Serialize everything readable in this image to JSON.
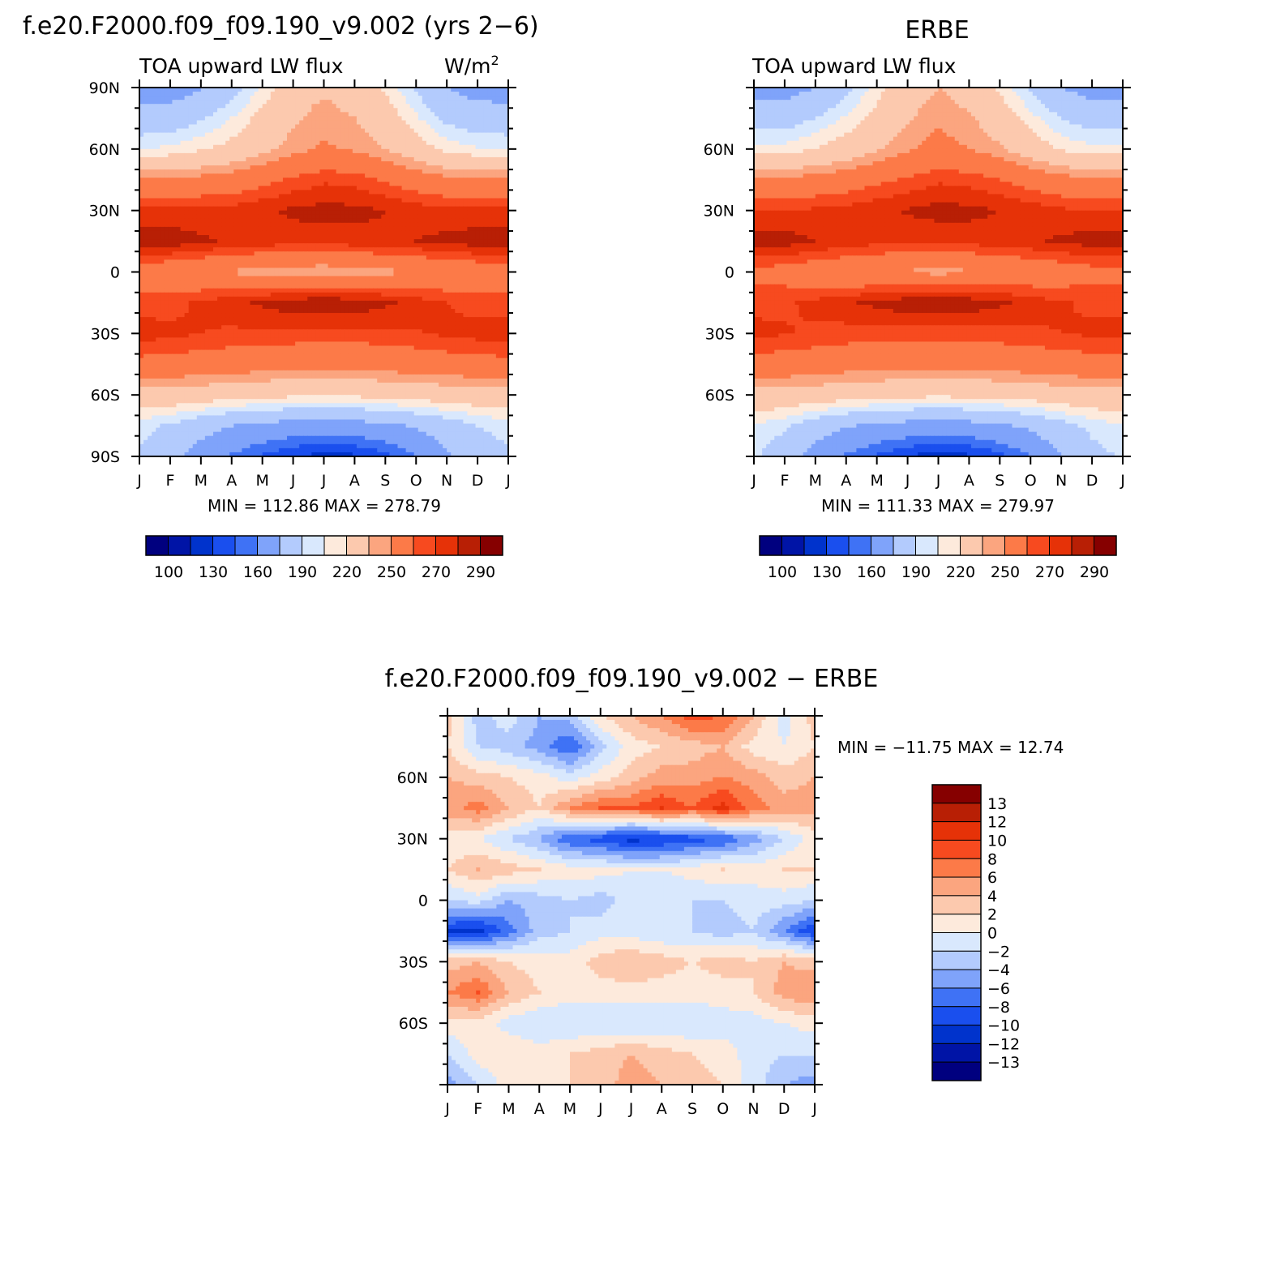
{
  "colors": {
    "abs_palette": [
      "#00007f",
      "#0014a6",
      "#0033cc",
      "#1a4fee",
      "#3f72f5",
      "#7fa3fa",
      "#b3cbfd",
      "#d9e8fd",
      "#fdeadc",
      "#fcc9ae",
      "#fba57f",
      "#fc7a48",
      "#f74a1f",
      "#e63208",
      "#b81f05",
      "#860000"
    ],
    "diff_palette": [
      "#00007f",
      "#0014a6",
      "#0033cc",
      "#1a4fee",
      "#3f72f5",
      "#7fa3fa",
      "#b3cbfd",
      "#d9e8fd",
      "#fdeadc",
      "#fcc9ae",
      "#fba57f",
      "#fc7a48",
      "#f74a1f",
      "#e63208",
      "#b81f05",
      "#860000"
    ]
  },
  "panels": {
    "model": {
      "title": "f.e20.F2000.f09_f09.190_v9.002 (yrs 2−6)",
      "left_string": "TOA upward LW flux",
      "units_base": "W/m",
      "units_sup": "2",
      "minmax": "MIN = 112.86 MAX = 278.79"
    },
    "obs": {
      "title": "ERBE",
      "left_string": "TOA upward LW flux",
      "minmax": "MIN = 111.33 MAX = 279.97"
    },
    "diff": {
      "title": "f.e20.F2000.f09_f09.190_v9.002 − ERBE",
      "minmax": "MIN = −11.75 MAX =  12.74"
    }
  },
  "axes": {
    "months": [
      "J",
      "F",
      "M",
      "A",
      "M",
      "J",
      "J",
      "A",
      "S",
      "O",
      "N",
      "D",
      "J"
    ],
    "lat_labels_model": [
      "90N",
      "60N",
      "30N",
      "0",
      "30S",
      "60S",
      "90S"
    ],
    "lat_labels_obs": [
      "60N",
      "30N",
      "0",
      "30S",
      "60S"
    ],
    "lat_labels_diff": [
      "60N",
      "30N",
      "0",
      "30S",
      "60S"
    ]
  },
  "legends": {
    "abs": [
      "100",
      "130",
      "160",
      "190",
      "220",
      "250",
      "270",
      "290"
    ],
    "diff": [
      "13",
      "12",
      "10",
      "8",
      "6",
      "4",
      "2",
      "0",
      "−2",
      "−4",
      "−6",
      "−8",
      "−10",
      "−12",
      "−13"
    ]
  },
  "chart_data": [
    {
      "type": "heatmap",
      "title": "f.e20.F2000.f09_f09.190_v9.002 (yrs 2−6)",
      "variable": "TOA upward LW flux",
      "units": "W/m2",
      "x": [
        "J",
        "F",
        "M",
        "A",
        "M",
        "J",
        "J",
        "A",
        "S",
        "O",
        "N",
        "D",
        "J"
      ],
      "y": [
        90,
        75,
        60,
        45,
        30,
        15,
        0,
        -15,
        -30,
        -45,
        -60,
        -75,
        -90
      ],
      "values": [
        [
          152,
          150,
          158,
          172,
          192,
          212,
          218,
          212,
          198,
          178,
          160,
          152,
          152
        ],
        [
          168,
          170,
          178,
          190,
          205,
          218,
          225,
          220,
          210,
          192,
          176,
          170,
          168
        ],
        [
          190,
          192,
          198,
          205,
          215,
          225,
          232,
          228,
          220,
          208,
          196,
          191,
          190
        ],
        [
          232,
          232,
          235,
          238,
          245,
          252,
          258,
          256,
          248,
          240,
          234,
          232,
          232
        ],
        [
          262,
          262,
          263,
          264,
          268,
          272,
          274,
          273,
          270,
          266,
          263,
          262,
          262
        ],
        [
          278,
          277,
          272,
          268,
          266,
          265,
          265,
          266,
          268,
          270,
          273,
          276,
          278
        ],
        [
          238,
          236,
          232,
          228,
          224,
          222,
          221,
          222,
          226,
          230,
          234,
          237,
          238
        ],
        [
          255,
          256,
          262,
          267,
          272,
          277,
          278,
          277,
          272,
          266,
          260,
          256,
          255
        ],
        [
          265,
          263,
          260,
          258,
          258,
          257,
          256,
          256,
          257,
          259,
          262,
          264,
          265
        ],
        [
          245,
          243,
          242,
          240,
          238,
          236,
          236,
          236,
          238,
          240,
          242,
          244,
          245
        ],
        [
          212,
          212,
          210,
          207,
          205,
          203,
          202,
          203,
          205,
          207,
          210,
          211,
          212
        ],
        [
          185,
          178,
          168,
          160,
          155,
          152,
          150,
          152,
          156,
          162,
          170,
          180,
          185
        ],
        [
          178,
          168,
          150,
          138,
          128,
          120,
          116,
          118,
          126,
          140,
          158,
          170,
          178
        ]
      ],
      "xlabel": "",
      "ylabel": ""
    },
    {
      "type": "heatmap",
      "title": "ERBE",
      "variable": "TOA upward LW flux",
      "units": "W/m2",
      "x": [
        "J",
        "F",
        "M",
        "A",
        "M",
        "J",
        "J",
        "A",
        "S",
        "O",
        "N",
        "D",
        "J"
      ],
      "y": [
        90,
        75,
        60,
        45,
        30,
        15,
        0,
        -15,
        -30,
        -45,
        -60,
        -75,
        -90
      ],
      "values": [
        [
          152,
          152,
          160,
          175,
          195,
          212,
          220,
          212,
          198,
          178,
          160,
          152,
          152
        ],
        [
          172,
          172,
          180,
          192,
          205,
          218,
          228,
          222,
          210,
          194,
          180,
          172,
          172
        ],
        [
          192,
          194,
          200,
          208,
          218,
          228,
          235,
          230,
          222,
          210,
          198,
          193,
          192
        ],
        [
          232,
          233,
          236,
          240,
          246,
          252,
          258,
          256,
          250,
          242,
          236,
          233,
          232
        ],
        [
          260,
          260,
          262,
          264,
          268,
          271,
          274,
          273,
          270,
          266,
          262,
          260,
          260
        ],
        [
          276,
          275,
          270,
          266,
          264,
          263,
          263,
          264,
          266,
          268,
          272,
          275,
          276
        ],
        [
          245,
          243,
          238,
          234,
          230,
          228,
          226,
          228,
          232,
          236,
          240,
          244,
          245
        ],
        [
          258,
          258,
          263,
          268,
          273,
          277,
          279,
          277,
          272,
          266,
          261,
          258,
          258
        ],
        [
          262,
          261,
          258,
          256,
          256,
          255,
          255,
          255,
          256,
          258,
          260,
          262,
          262
        ],
        [
          243,
          242,
          240,
          238,
          237,
          236,
          235,
          236,
          237,
          239,
          241,
          243,
          243
        ],
        [
          214,
          213,
          211,
          208,
          206,
          204,
          203,
          204,
          206,
          208,
          211,
          213,
          214
        ],
        [
          190,
          182,
          170,
          162,
          156,
          153,
          151,
          153,
          157,
          164,
          174,
          184,
          190
        ],
        [
          182,
          170,
          152,
          138,
          128,
          120,
          114,
          118,
          126,
          140,
          160,
          174,
          182
        ]
      ],
      "xlabel": "",
      "ylabel": ""
    },
    {
      "type": "heatmap",
      "title": "f.e20.F2000.f09_f09.190_v9.002 − ERBE",
      "units": "W/m2",
      "x": [
        "J",
        "F",
        "M",
        "A",
        "M",
        "J",
        "J",
        "A",
        "S",
        "O",
        "N",
        "D",
        "J"
      ],
      "y": [
        90,
        75,
        60,
        45,
        30,
        15,
        0,
        -15,
        -30,
        -45,
        -60,
        -75,
        -90
      ],
      "values": [
        [
          3,
          -3,
          -1,
          -4,
          -3,
          2,
          4,
          6,
          9,
          8,
          4,
          -1,
          3
        ],
        [
          2,
          -2,
          -3,
          -5,
          -8,
          -3,
          1,
          2,
          3,
          4,
          1,
          0,
          2
        ],
        [
          4,
          3,
          2,
          1,
          -1,
          1,
          3,
          5,
          5,
          6,
          5,
          3,
          4
        ],
        [
          5,
          7,
          4,
          2,
          6,
          8,
          8,
          10,
          8,
          11,
          7,
          5,
          5
        ],
        [
          1,
          0,
          -2,
          -4,
          -8,
          -9,
          -11,
          -10,
          -9,
          -8,
          -5,
          -2,
          1
        ],
        [
          2,
          4,
          3,
          2,
          1,
          1,
          0,
          0,
          1,
          2,
          1,
          2,
          2
        ],
        [
          -2,
          -1,
          -4,
          -3,
          -2,
          -3,
          -1,
          -2,
          -2,
          -2,
          -1,
          -1,
          -2
        ],
        [
          -10,
          -11,
          -7,
          -3,
          -2,
          -1,
          -1,
          -2,
          -2,
          -3,
          -2,
          -6,
          -10
        ],
        [
          3,
          4,
          2,
          1,
          1,
          3,
          4,
          3,
          2,
          3,
          2,
          4,
          3
        ],
        [
          6,
          8,
          4,
          2,
          1,
          1,
          1,
          1,
          1,
          1,
          2,
          5,
          6
        ],
        [
          1,
          1,
          -1,
          -2,
          -2,
          -2,
          -2,
          -2,
          -2,
          -1,
          -1,
          0,
          1
        ],
        [
          -2,
          1,
          2,
          1,
          2,
          3,
          4,
          3,
          2,
          1,
          -1,
          -2,
          -2
        ],
        [
          -5,
          -2,
          1,
          2,
          2,
          3,
          5,
          4,
          3,
          2,
          -1,
          -4,
          -5
        ]
      ],
      "xlabel": "",
      "ylabel": ""
    }
  ]
}
